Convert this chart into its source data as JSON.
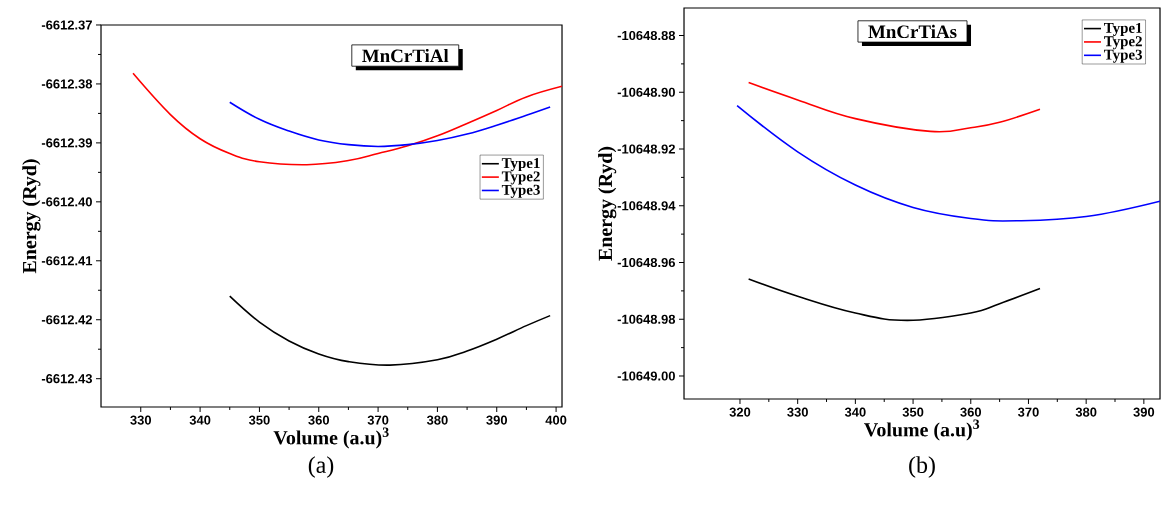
{
  "chart_data": [
    {
      "type": "line",
      "title": "MnCrTiAl",
      "xlabel": "Volume (a.u)$^{3}$",
      "ylabel": "Energy (Ryd)",
      "annotations": [
        "(a)"
      ],
      "xlim": [
        323.3,
        401
      ],
      "ylim": [
        -6612.4348,
        -6612.37
      ],
      "xticks": [
        330,
        340,
        350,
        360,
        370,
        380,
        390,
        400
      ],
      "yticks": [
        -6612.37,
        -6612.38,
        -6612.39,
        {
          "value": -6612.4,
          "label": "-6612.40"
        },
        -6612.41,
        -6612.42,
        -6612.43
      ],
      "legend": "right",
      "grid": false,
      "marker": "none",
      "line_style": "solid",
      "series": [
        {
          "name": "Type1",
          "color": "#000000",
          "x": [
            345,
            350,
            355,
            360,
            365,
            372,
            380,
            385,
            390,
            395,
            399
          ],
          "values": [
            -6612.416,
            -6612.4204,
            -6612.4236,
            -6612.4258,
            -6612.4271,
            -6612.4277,
            -6612.4268,
            -6612.4253,
            -6612.4233,
            -6612.421,
            -6612.4193
          ]
        },
        {
          "name": "Type2",
          "color": "#ff0000",
          "x": [
            328.7,
            335,
            340,
            345,
            350,
            358,
            365,
            370,
            375,
            380,
            385,
            390,
            395,
            401
          ],
          "values": [
            -6612.3782,
            -6612.3852,
            -6612.3893,
            -6612.3918,
            -6612.3932,
            -6612.3937,
            -6612.393,
            -6612.3918,
            -6612.3905,
            -6612.3888,
            -6612.3867,
            -6612.3845,
            -6612.3822,
            -6612.3804
          ]
        },
        {
          "name": "Type3",
          "color": "#0000ff",
          "x": [
            345,
            350,
            355,
            360,
            365,
            370,
            375,
            380,
            385,
            390,
            395,
            399
          ],
          "values": [
            -6612.3831,
            -6612.386,
            -6612.388,
            -6612.3895,
            -6612.3903,
            -6612.3906,
            -6612.3903,
            -6612.3896,
            -6612.3885,
            -6612.387,
            -6612.3853,
            -6612.3839
          ]
        }
      ]
    },
    {
      "type": "line",
      "title": "MnCrTiAs",
      "xlabel": "Volume (a.u)$^{3}$",
      "ylabel": "Energy (Ryd)",
      "annotations": [
        "(b)"
      ],
      "xlim": [
        310.3,
        392.8
      ],
      "ylim": [
        -10649.0081,
        -10648.8703
      ],
      "xticks": [
        320,
        330,
        340,
        350,
        360,
        370,
        380,
        390
      ],
      "yticks": [
        -10648.88,
        {
          "value": -10648.9,
          "label": "-10648.90"
        },
        -10648.92,
        -10648.94,
        -10648.96,
        -10648.98,
        {
          "value": -10649.0,
          "label": "-10649.00"
        }
      ],
      "legend": "top right",
      "grid": false,
      "marker": "none",
      "line_style": "solid",
      "series": [
        {
          "name": "Type1",
          "color": "#000000",
          "x": [
            321.5,
            330,
            340,
            349,
            360,
            365,
            372
          ],
          "values": [
            -10648.9658,
            -10648.9719,
            -10648.9778,
            -10648.9804,
            -10648.9778,
            -10648.9745,
            -10648.9692
          ]
        },
        {
          "name": "Type2",
          "color": "#ff0000",
          "x": [
            321.5,
            330,
            340,
            353,
            360,
            365,
            372
          ],
          "values": [
            -10648.8966,
            -10648.9027,
            -10648.9093,
            -10648.9138,
            -10648.9125,
            -10648.9106,
            -10648.906
          ]
        },
        {
          "name": "Type3",
          "color": "#0000ff",
          "x": [
            319.5,
            330,
            340,
            350,
            360,
            368,
            380,
            392.8
          ],
          "values": [
            -10648.9047,
            -10648.921,
            -10648.9327,
            -10648.9406,
            -10648.9445,
            -10648.9453,
            -10648.9438,
            -10648.9384
          ]
        }
      ]
    }
  ]
}
